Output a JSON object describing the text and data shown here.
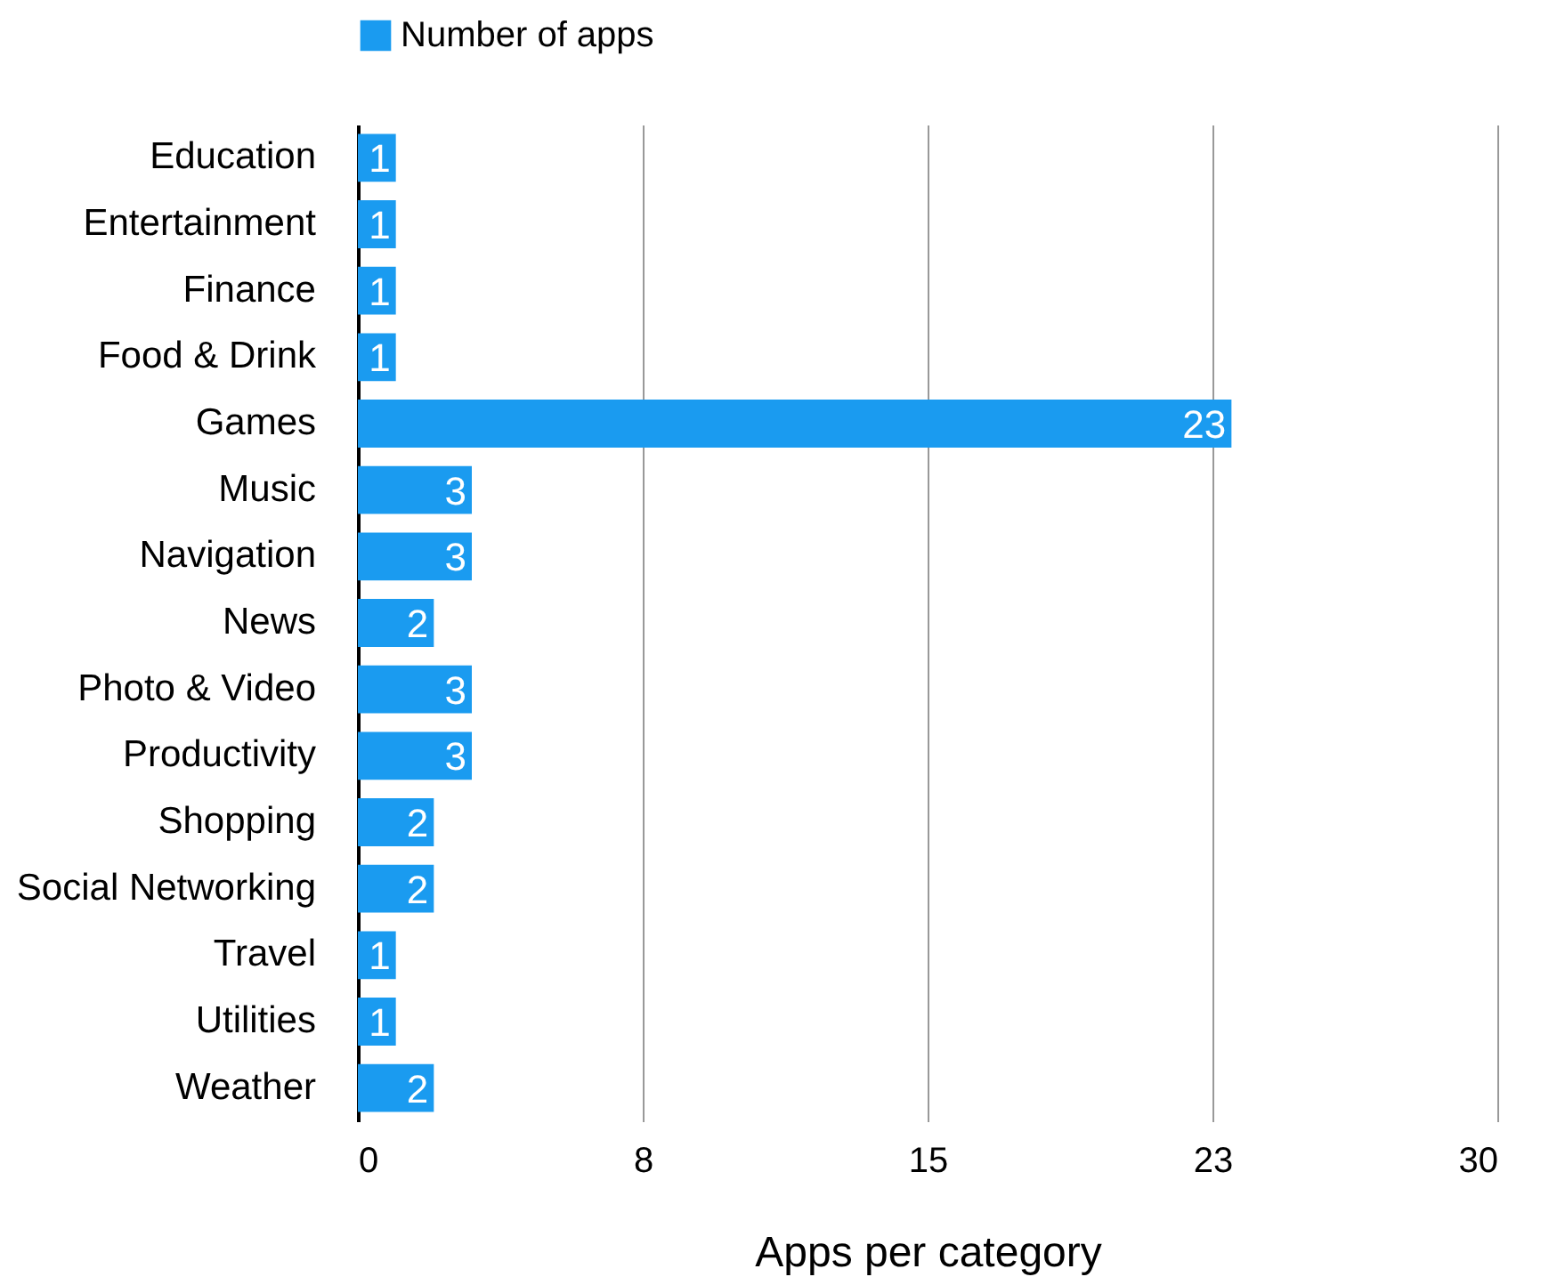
{
  "chart_data": {
    "type": "bar",
    "orientation": "horizontal",
    "xlabel": "Apps per category",
    "categories": [
      "Education",
      "Entertainment",
      "Finance",
      "Food & Drink",
      "Games",
      "Music",
      "Navigation",
      "News",
      "Photo & Video",
      "Productivity",
      "Shopping",
      "Social Networking",
      "Travel",
      "Utilities",
      "Weather"
    ],
    "series": [
      {
        "name": "Number of apps",
        "color": "#1a9bf0",
        "values": [
          1,
          1,
          1,
          1,
          23,
          3,
          3,
          2,
          3,
          3,
          2,
          2,
          1,
          1,
          2
        ]
      }
    ],
    "xlim": [
      0,
      30
    ],
    "xticks": [
      0,
      {
        "value": 7.5,
        "label": "8"
      },
      15,
      {
        "value": 22.5,
        "label": "23"
      },
      30
    ],
    "grid": "x",
    "legend": "top",
    "data_labels": true
  }
}
